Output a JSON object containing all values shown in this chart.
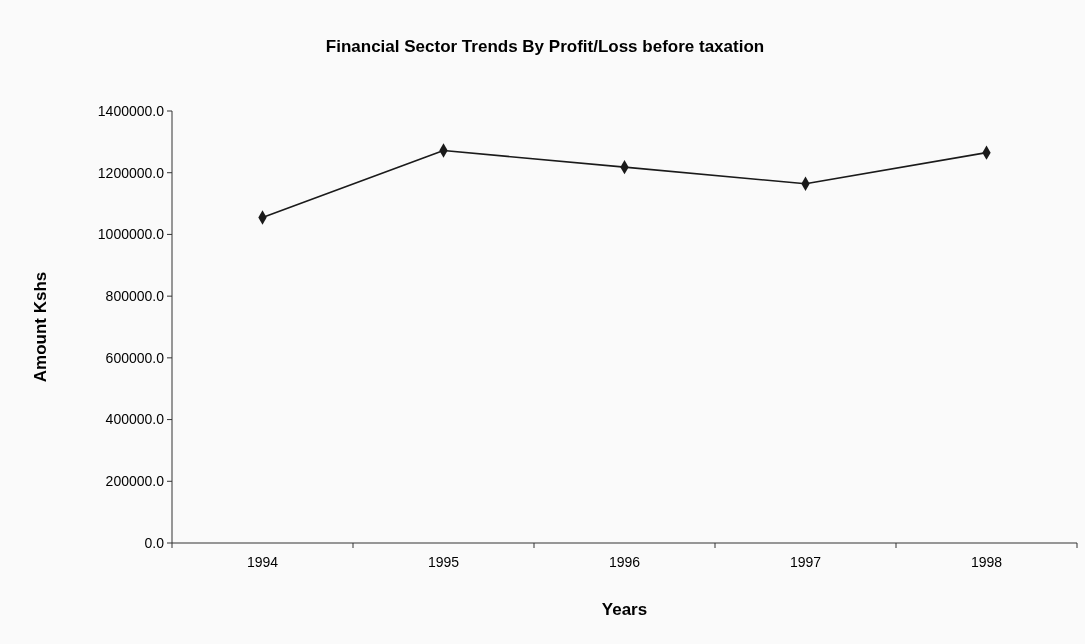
{
  "chart_data": {
    "type": "line",
    "title": "Financial Sector Trends By Profit/Loss before taxation",
    "xlabel": "Years",
    "ylabel": "Amount Kshs",
    "categories": [
      "1994",
      "1995",
      "1996",
      "1997",
      "1998"
    ],
    "series": [
      {
        "color": "#1a1a1a",
        "values": [
          1055000,
          1272000,
          1218000,
          1164000,
          1265000
        ]
      }
    ],
    "ylim": [
      0,
      1400000
    ],
    "yticks": [
      {
        "value": 0,
        "label": "0.0"
      },
      {
        "value": 200000,
        "label": "200000.0"
      },
      {
        "value": 400000,
        "label": "400000.0"
      },
      {
        "value": 600000,
        "label": "600000.0"
      },
      {
        "value": 800000,
        "label": "800000.0"
      },
      {
        "value": 1000000,
        "label": "1000000.0"
      },
      {
        "value": 1200000,
        "label": "1200000.0"
      },
      {
        "value": 1400000,
        "label": "1400000.0"
      }
    ],
    "marker": "diamond",
    "line_style": "solid"
  }
}
